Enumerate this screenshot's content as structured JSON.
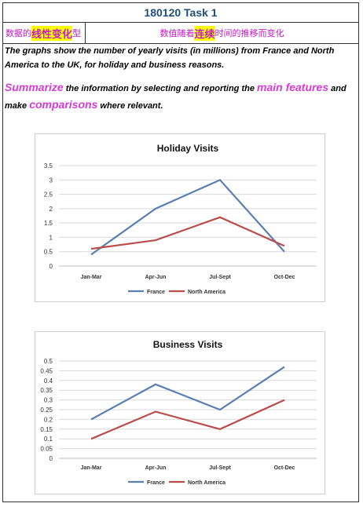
{
  "header": {
    "title": "180120 Task 1",
    "left_pre": "数据的",
    "left_highlight": "线性变化",
    "left_post": "型",
    "right_pre": "数值随着",
    "right_highlight": "连续",
    "right_post": "时间的推移而变化"
  },
  "prompt": {
    "sentence1": "The graphs show the number of yearly visits (in millions) from France and North America to the UK, for holiday and business reasons.",
    "word_summarize": "Summarize",
    "text_a": " the information by selecting and reporting the ",
    "word_main_features": "main features",
    "text_b": " and make ",
    "word_comparisons": "comparisons",
    "text_c": " where relevant."
  },
  "colors": {
    "france": "#5b7fb0",
    "north_america": "#b84d4b",
    "accent": "#d63bd6",
    "title": "#1f4e79"
  },
  "chart_data": [
    {
      "type": "line",
      "title": "Holiday Visits",
      "categories": [
        "Jan-Mar",
        "Apr-Jun",
        "Jul-Sept",
        "Oct-Dec"
      ],
      "series": [
        {
          "name": "France",
          "values": [
            0.4,
            2.0,
            3.0,
            0.5
          ]
        },
        {
          "name": "North America",
          "values": [
            0.6,
            0.9,
            1.7,
            0.7
          ]
        }
      ],
      "ylim": [
        0,
        3.5
      ],
      "yticks": [
        "0",
        "0.5",
        "1",
        "1.5",
        "2",
        "2.5",
        "3",
        "3.5"
      ],
      "grid": true,
      "legend": "bottom"
    },
    {
      "type": "line",
      "title": "Business Visits",
      "categories": [
        "Jan-Mar",
        "Apr-Jun",
        "Jul-Sept",
        "Oct-Dec"
      ],
      "series": [
        {
          "name": "France",
          "values": [
            0.2,
            0.38,
            0.25,
            0.47
          ]
        },
        {
          "name": "North America",
          "values": [
            0.1,
            0.24,
            0.15,
            0.3
          ]
        }
      ],
      "ylim": [
        0,
        0.5
      ],
      "yticks": [
        "0",
        "0.05",
        "0.1",
        "0.15",
        "0.2",
        "0.25",
        "0.3",
        "0.35",
        "0.4",
        "0.45",
        "0.5"
      ],
      "grid": true,
      "legend": "bottom"
    }
  ]
}
